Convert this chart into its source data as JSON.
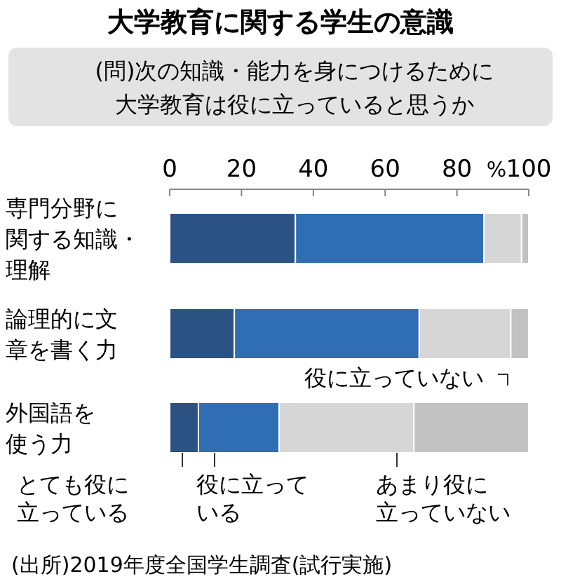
{
  "chart_data": {
    "type": "bar",
    "orientation": "horizontal",
    "stacked": true,
    "title": "大学教育に関する学生の意識",
    "subtitle": "(問)次の知識・能力を身につけるために大学教育は役に立っていると思うか",
    "categories": [
      "専門分野に関する知識・理解",
      "論理的に文章を書く力",
      "外国語を使う力"
    ],
    "series": [
      {
        "name": "とても役に立っている",
        "color": "#2b5283",
        "values": [
          35,
          18,
          8
        ]
      },
      {
        "name": "役に立っている",
        "color": "#2f6eb3",
        "values": [
          52.5,
          51.5,
          22.5
        ]
      },
      {
        "name": "あまり役に立っていない",
        "color": "#d6d6d6",
        "values": [
          10.5,
          25.5,
          37.5
        ]
      },
      {
        "name": "役に立っていない",
        "color": "#c2c2c2",
        "values": [
          2,
          5,
          32
        ]
      }
    ],
    "xlim": [
      0,
      100
    ],
    "xticks": [
      0,
      20,
      40,
      60,
      {
        "value": 80,
        "label": "80"
      },
      100
    ],
    "xlabel": "%",
    "legend": "bottom",
    "grid": false,
    "annotations": [
      "(出所)2019年度全国学生調査(試行実施)"
    ]
  }
}
